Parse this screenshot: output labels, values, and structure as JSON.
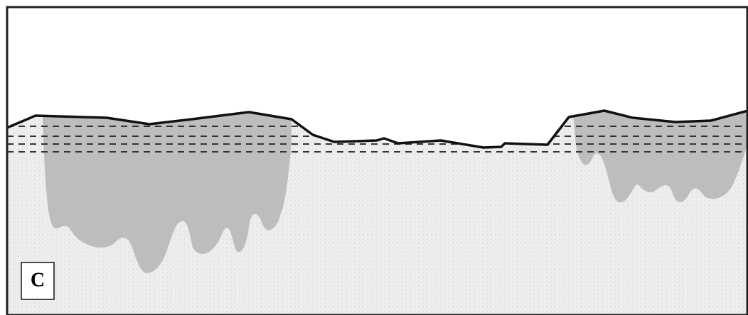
{
  "panel": {
    "label": "C"
  }
}
